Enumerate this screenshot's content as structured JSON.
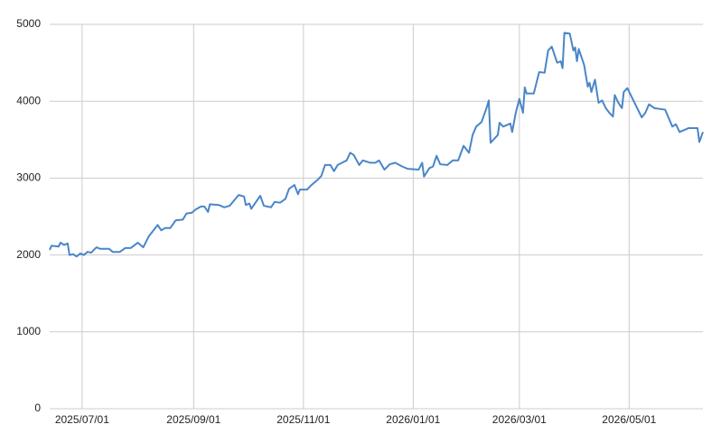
{
  "chart_data": {
    "type": "line",
    "x": [
      "2025/06/13",
      "2025/06/14",
      "2025/06/18",
      "2025/06/19",
      "2025/06/21",
      "2025/06/23",
      "2025/06/24",
      "2025/06/26",
      "2025/06/28",
      "2025/06/30",
      "2025/07/02",
      "2025/07/04",
      "2025/07/06",
      "2025/07/09",
      "2025/07/11",
      "2025/07/16",
      "2025/07/18",
      "2025/07/22",
      "2025/07/25",
      "2025/07/28",
      "2025/08/01",
      "2025/08/04",
      "2025/08/07",
      "2025/08/12",
      "2025/08/14",
      "2025/08/16",
      "2025/08/19",
      "2025/08/22",
      "2025/08/26",
      "2025/08/28",
      "2025/08/31",
      "2025/09/02",
      "2025/09/05",
      "2025/09/07",
      "2025/09/09",
      "2025/09/10",
      "2025/09/15",
      "2025/09/18",
      "2025/09/21",
      "2025/09/26",
      "2025/09/29",
      "2025/09/30",
      "2025/10/02",
      "2025/10/03",
      "2025/10/08",
      "2025/10/10",
      "2025/10/14",
      "2025/10/16",
      "2025/10/19",
      "2025/10/22",
      "2025/10/24",
      "2025/10/27",
      "2025/10/29",
      "2025/10/30",
      "2025/11/03",
      "2025/11/05",
      "2025/11/09",
      "2025/11/11",
      "2025/11/13",
      "2025/11/16",
      "2025/11/18",
      "2025/11/20",
      "2025/11/25",
      "2025/11/27",
      "2025/11/29",
      "2025/12/02",
      "2025/12/04",
      "2025/12/08",
      "2025/12/11",
      "2025/12/13",
      "2025/12/16",
      "2025/12/19",
      "2025/12/22",
      "2025/12/26",
      "2025/12/29",
      "2026/01/04",
      "2026/01/06",
      "2026/01/07",
      "2026/01/10",
      "2026/01/12",
      "2026/01/14",
      "2026/01/16",
      "2026/01/20",
      "2026/01/23",
      "2026/01/26",
      "2026/01/29",
      "2026/02/01",
      "2026/02/03",
      "2026/02/05",
      "2026/02/08",
      "2026/02/11",
      "2026/02/12",
      "2026/02/13",
      "2026/02/17",
      "2026/02/18",
      "2026/02/20",
      "2026/02/24",
      "2026/02/25",
      "2026/02/27",
      "2026/03/01",
      "2026/03/03",
      "2026/03/04",
      "2026/03/05",
      "2026/03/09",
      "2026/03/12",
      "2026/03/15",
      "2026/03/17",
      "2026/03/19",
      "2026/03/22",
      "2026/03/24",
      "2026/03/25",
      "2026/03/26",
      "2026/03/29",
      "2026/03/31",
      "2026/04/01",
      "2026/04/02",
      "2026/04/03",
      "2026/04/06",
      "2026/04/08",
      "2026/04/09",
      "2026/04/10",
      "2026/04/12",
      "2026/04/14",
      "2026/04/16",
      "2026/04/18",
      "2026/04/20",
      "2026/04/22",
      "2026/04/23",
      "2026/04/25",
      "2026/04/27",
      "2026/04/28",
      "2026/04/30",
      "2026/05/08",
      "2026/05/10",
      "2026/05/12",
      "2026/05/15",
      "2026/05/21",
      "2026/05/25",
      "2026/05/27",
      "2026/05/29",
      "2026/06/03",
      "2026/06/08",
      "2026/06/09",
      "2026/06/11"
    ],
    "series": [
      {
        "color": "#4a86c8",
        "values": [
          2066,
          2120,
          2110,
          2160,
          2130,
          2150,
          2000,
          2010,
          1980,
          2020,
          2000,
          2040,
          2030,
          2100,
          2080,
          2080,
          2040,
          2040,
          2090,
          2090,
          2160,
          2100,
          2240,
          2390,
          2320,
          2350,
          2350,
          2450,
          2460,
          2540,
          2550,
          2590,
          2630,
          2630,
          2560,
          2660,
          2650,
          2620,
          2640,
          2780,
          2760,
          2650,
          2670,
          2600,
          2770,
          2640,
          2620,
          2690,
          2680,
          2730,
          2860,
          2910,
          2790,
          2850,
          2850,
          2900,
          2980,
          3030,
          3170,
          3170,
          3090,
          3170,
          3230,
          3330,
          3300,
          3170,
          3230,
          3200,
          3200,
          3230,
          3110,
          3180,
          3200,
          3150,
          3120,
          3110,
          3200,
          3020,
          3130,
          3150,
          3290,
          3180,
          3170,
          3230,
          3230,
          3420,
          3330,
          3560,
          3670,
          3730,
          3930,
          4010,
          3460,
          3560,
          3720,
          3670,
          3710,
          3600,
          3850,
          4030,
          3850,
          4180,
          4100,
          4100,
          4380,
          4370,
          4660,
          4710,
          4500,
          4520,
          4430,
          4890,
          4880,
          4660,
          4700,
          4520,
          4680,
          4470,
          4190,
          4240,
          4120,
          4280,
          3980,
          4010,
          3910,
          3850,
          3800,
          4080,
          3980,
          3910,
          4120,
          4170,
          3790,
          3850,
          3960,
          3910,
          3890,
          3670,
          3700,
          3600,
          3650,
          3650,
          3470,
          3600
        ]
      }
    ],
    "xlim": [
      "2025/06/13",
      "2026/06/11"
    ],
    "xticks": [
      "2025/07/01",
      "2025/09/01",
      "2025/11/01",
      "2026/01/01",
      "2026/03/01",
      "2026/05/01"
    ],
    "ylim": [
      0,
      5000
    ],
    "yticks": [
      0,
      1000,
      2000,
      3000,
      4000,
      5000
    ],
    "grid": true
  }
}
